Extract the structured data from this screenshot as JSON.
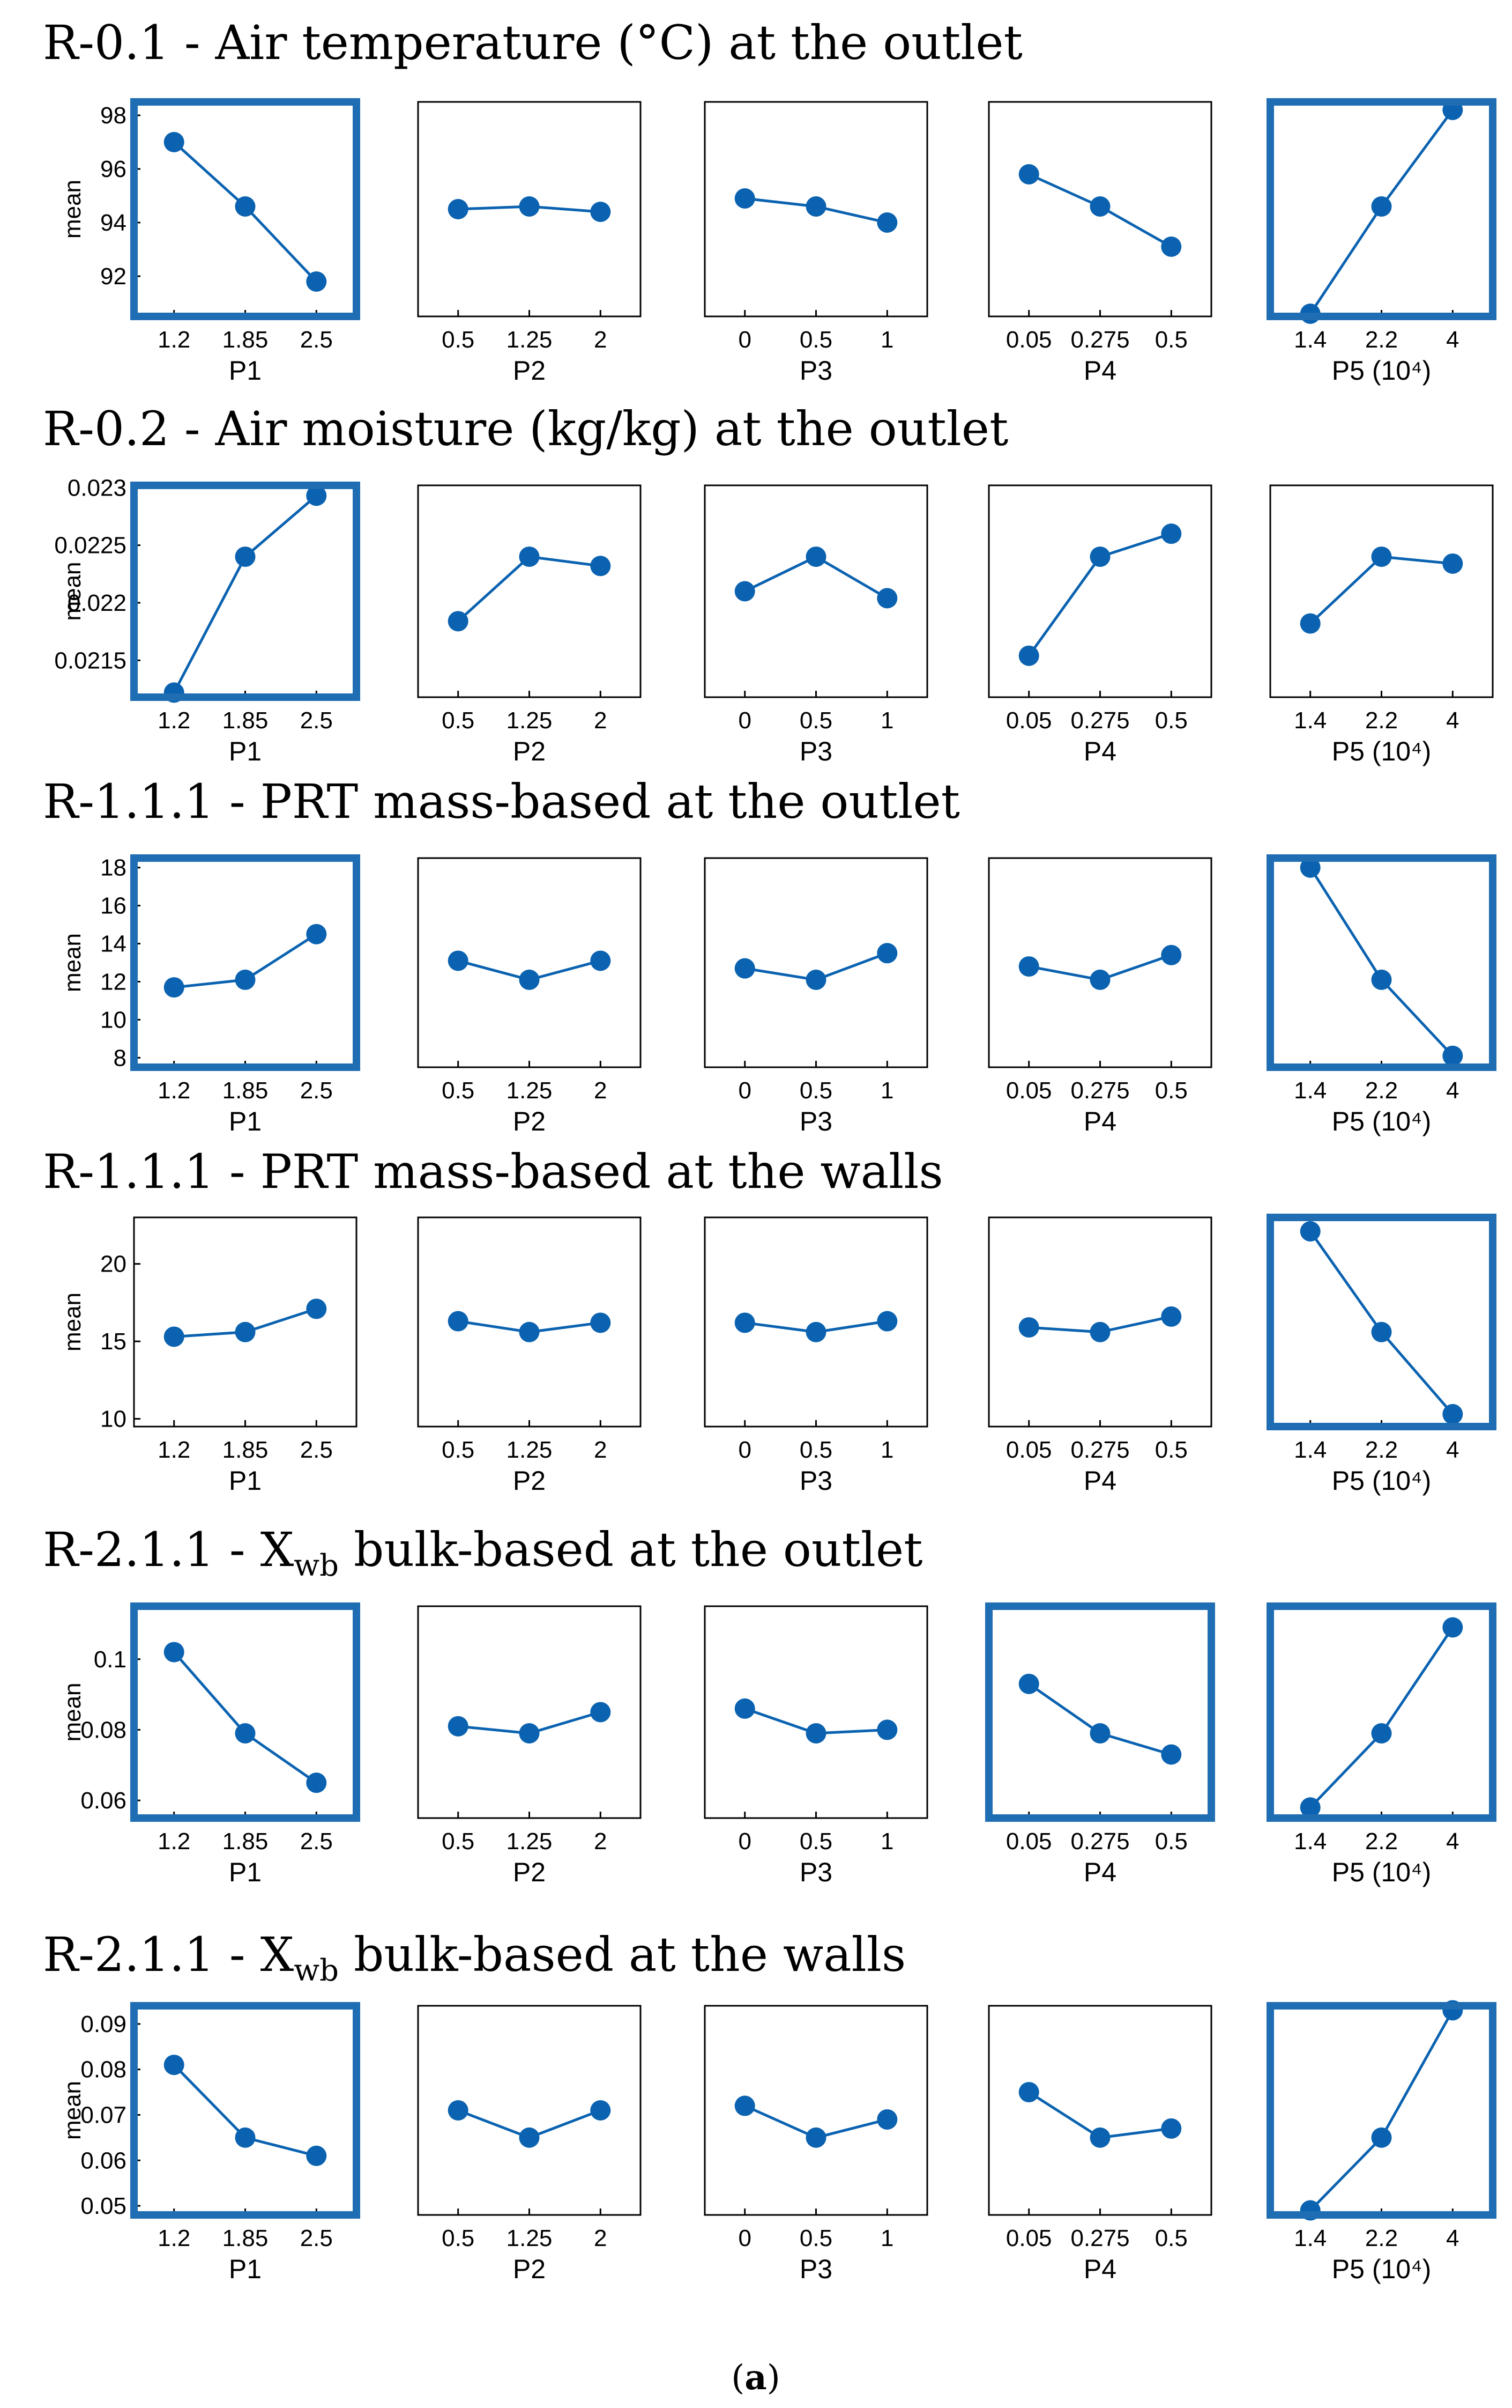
{
  "caption": {
    "open": "(",
    "label": "a",
    "close": ")"
  },
  "style": {
    "series_color": "#0a62b0",
    "highlight_color": "#1f6db3"
  },
  "chart_data": [
    {
      "type": "line",
      "title": "R-0.1 - Air temperature (°C) at the outlet",
      "ylabel": "mean",
      "ylim": [
        90.5,
        98.5
      ],
      "yticks": [
        {
          "v": 92,
          "label": "92"
        },
        {
          "v": 94,
          "label": "94"
        },
        {
          "v": 96,
          "label": "96"
        },
        {
          "v": 98,
          "label": "98"
        }
      ],
      "panels": [
        {
          "xlabel": "P1",
          "highlight": true,
          "categories": [
            "1.2",
            "1.85",
            "2.5"
          ],
          "values": [
            97.0,
            94.6,
            91.8
          ]
        },
        {
          "xlabel": "P2",
          "highlight": false,
          "categories": [
            "0.5",
            "1.25",
            "2"
          ],
          "values": [
            94.5,
            94.6,
            94.4
          ]
        },
        {
          "xlabel": "P3",
          "highlight": false,
          "categories": [
            "0",
            "0.5",
            "1"
          ],
          "values": [
            94.9,
            94.6,
            94.0
          ]
        },
        {
          "xlabel": "P4",
          "highlight": false,
          "categories": [
            "0.05",
            "0.275",
            "0.5"
          ],
          "values": [
            95.8,
            94.6,
            93.1
          ]
        },
        {
          "xlabel": "P5 (10⁴)",
          "highlight": true,
          "categories": [
            "1.4",
            "2.2",
            "4"
          ],
          "values": [
            90.6,
            94.6,
            98.2
          ]
        }
      ]
    },
    {
      "type": "line",
      "title": "R-0.2 - Air moisture (kg/kg) at the outlet",
      "ylabel": "mean",
      "ylim": [
        0.02118,
        0.02302
      ],
      "yticks": [
        {
          "v": 0.0215,
          "label": "0.0215"
        },
        {
          "v": 0.022,
          "label": "0.022"
        },
        {
          "v": 0.0225,
          "label": "0.0225"
        },
        {
          "v": 0.023,
          "label": "0.023"
        }
      ],
      "panels": [
        {
          "xlabel": "P1",
          "highlight": true,
          "categories": [
            "1.2",
            "1.85",
            "2.5"
          ],
          "values": [
            0.02122,
            0.0224,
            0.02293
          ]
        },
        {
          "xlabel": "P2",
          "highlight": false,
          "categories": [
            "0.5",
            "1.25",
            "2"
          ],
          "values": [
            0.02184,
            0.0224,
            0.02232
          ]
        },
        {
          "xlabel": "P3",
          "highlight": false,
          "categories": [
            "0",
            "0.5",
            "1"
          ],
          "values": [
            0.0221,
            0.0224,
            0.02204
          ]
        },
        {
          "xlabel": "P4",
          "highlight": false,
          "categories": [
            "0.05",
            "0.275",
            "0.5"
          ],
          "values": [
            0.02154,
            0.0224,
            0.0226
          ]
        },
        {
          "xlabel": "P5 (10⁴)",
          "highlight": false,
          "categories": [
            "1.4",
            "2.2",
            "4"
          ],
          "values": [
            0.02182,
            0.0224,
            0.02234
          ]
        }
      ]
    },
    {
      "type": "line",
      "title": "R-1.1.1 - PRT mass-based at the outlet",
      "ylabel": "mean",
      "ylim": [
        7.5,
        18.5
      ],
      "yticks": [
        {
          "v": 8,
          "label": "8"
        },
        {
          "v": 10,
          "label": "10"
        },
        {
          "v": 12,
          "label": "12"
        },
        {
          "v": 14,
          "label": "14"
        },
        {
          "v": 16,
          "label": "16"
        },
        {
          "v": 18,
          "label": "18"
        }
      ],
      "panels": [
        {
          "xlabel": "P1",
          "highlight": true,
          "categories": [
            "1.2",
            "1.85",
            "2.5"
          ],
          "values": [
            11.7,
            12.1,
            14.5
          ]
        },
        {
          "xlabel": "P2",
          "highlight": false,
          "categories": [
            "0.5",
            "1.25",
            "2"
          ],
          "values": [
            13.1,
            12.1,
            13.1
          ]
        },
        {
          "xlabel": "P3",
          "highlight": false,
          "categories": [
            "0",
            "0.5",
            "1"
          ],
          "values": [
            12.7,
            12.1,
            13.5
          ]
        },
        {
          "xlabel": "P4",
          "highlight": false,
          "categories": [
            "0.05",
            "0.275",
            "0.5"
          ],
          "values": [
            12.8,
            12.1,
            13.4
          ]
        },
        {
          "xlabel": "P5 (10⁴)",
          "highlight": true,
          "categories": [
            "1.4",
            "2.2",
            "4"
          ],
          "values": [
            18.0,
            12.1,
            8.1
          ]
        }
      ]
    },
    {
      "type": "line",
      "title": "R-1.1.1 - PRT mass-based at the walls",
      "ylabel": "mean",
      "ylim": [
        9.5,
        23
      ],
      "yticks": [
        {
          "v": 10,
          "label": "10"
        },
        {
          "v": 15,
          "label": "15"
        },
        {
          "v": 20,
          "label": "20"
        }
      ],
      "panels": [
        {
          "xlabel": "P1",
          "highlight": false,
          "categories": [
            "1.2",
            "1.85",
            "2.5"
          ],
          "values": [
            15.3,
            15.6,
            17.1
          ]
        },
        {
          "xlabel": "P2",
          "highlight": false,
          "categories": [
            "0.5",
            "1.25",
            "2"
          ],
          "values": [
            16.3,
            15.6,
            16.2
          ]
        },
        {
          "xlabel": "P3",
          "highlight": false,
          "categories": [
            "0",
            "0.5",
            "1"
          ],
          "values": [
            16.2,
            15.6,
            16.3
          ]
        },
        {
          "xlabel": "P4",
          "highlight": false,
          "categories": [
            "0.05",
            "0.275",
            "0.5"
          ],
          "values": [
            15.9,
            15.6,
            16.6
          ]
        },
        {
          "xlabel": "P5 (10⁴)",
          "highlight": true,
          "categories": [
            "1.4",
            "2.2",
            "4"
          ],
          "values": [
            22.1,
            15.6,
            10.3
          ]
        }
      ]
    },
    {
      "type": "line",
      "title": "R-2.1.1 - X",
      "title_sub": "wb",
      "title_rest": " bulk-based at the outlet",
      "ylabel": "mean",
      "ylim": [
        0.055,
        0.115
      ],
      "yticks": [
        {
          "v": 0.06,
          "label": "0.06"
        },
        {
          "v": 0.08,
          "label": "0.08"
        },
        {
          "v": 0.1,
          "label": "0.1"
        }
      ],
      "panels": [
        {
          "xlabel": "P1",
          "highlight": true,
          "categories": [
            "1.2",
            "1.85",
            "2.5"
          ],
          "values": [
            0.102,
            0.079,
            0.065
          ]
        },
        {
          "xlabel": "P2",
          "highlight": false,
          "categories": [
            "0.5",
            "1.25",
            "2"
          ],
          "values": [
            0.081,
            0.079,
            0.085
          ]
        },
        {
          "xlabel": "P3",
          "highlight": false,
          "categories": [
            "0",
            "0.5",
            "1"
          ],
          "values": [
            0.086,
            0.079,
            0.08
          ]
        },
        {
          "xlabel": "P4",
          "highlight": true,
          "categories": [
            "0.05",
            "0.275",
            "0.5"
          ],
          "values": [
            0.093,
            0.079,
            0.073
          ]
        },
        {
          "xlabel": "P5 (10⁴)",
          "highlight": true,
          "categories": [
            "1.4",
            "2.2",
            "4"
          ],
          "values": [
            0.058,
            0.079,
            0.109
          ]
        }
      ]
    },
    {
      "type": "line",
      "title": "R-2.1.1 - X",
      "title_sub": "wb",
      "title_rest": " bulk-based at the walls",
      "ylabel": "mean",
      "ylim": [
        0.048,
        0.094
      ],
      "yticks": [
        {
          "v": 0.05,
          "label": "0.05"
        },
        {
          "v": 0.06,
          "label": "0.06"
        },
        {
          "v": 0.07,
          "label": "0.07"
        },
        {
          "v": 0.08,
          "label": "0.08"
        },
        {
          "v": 0.09,
          "label": "0.09"
        }
      ],
      "panels": [
        {
          "xlabel": "P1",
          "highlight": true,
          "categories": [
            "1.2",
            "1.85",
            "2.5"
          ],
          "values": [
            0.081,
            0.065,
            0.061
          ]
        },
        {
          "xlabel": "P2",
          "highlight": false,
          "categories": [
            "0.5",
            "1.25",
            "2"
          ],
          "values": [
            0.071,
            0.065,
            0.071
          ]
        },
        {
          "xlabel": "P3",
          "highlight": false,
          "categories": [
            "0",
            "0.5",
            "1"
          ],
          "values": [
            0.072,
            0.065,
            0.069
          ]
        },
        {
          "xlabel": "P4",
          "highlight": false,
          "categories": [
            "0.05",
            "0.275",
            "0.5"
          ],
          "values": [
            0.075,
            0.065,
            0.067
          ]
        },
        {
          "xlabel": "P5 (10⁴)",
          "highlight": true,
          "categories": [
            "1.4",
            "2.2",
            "4"
          ],
          "values": [
            0.049,
            0.065,
            0.093
          ]
        }
      ]
    }
  ]
}
